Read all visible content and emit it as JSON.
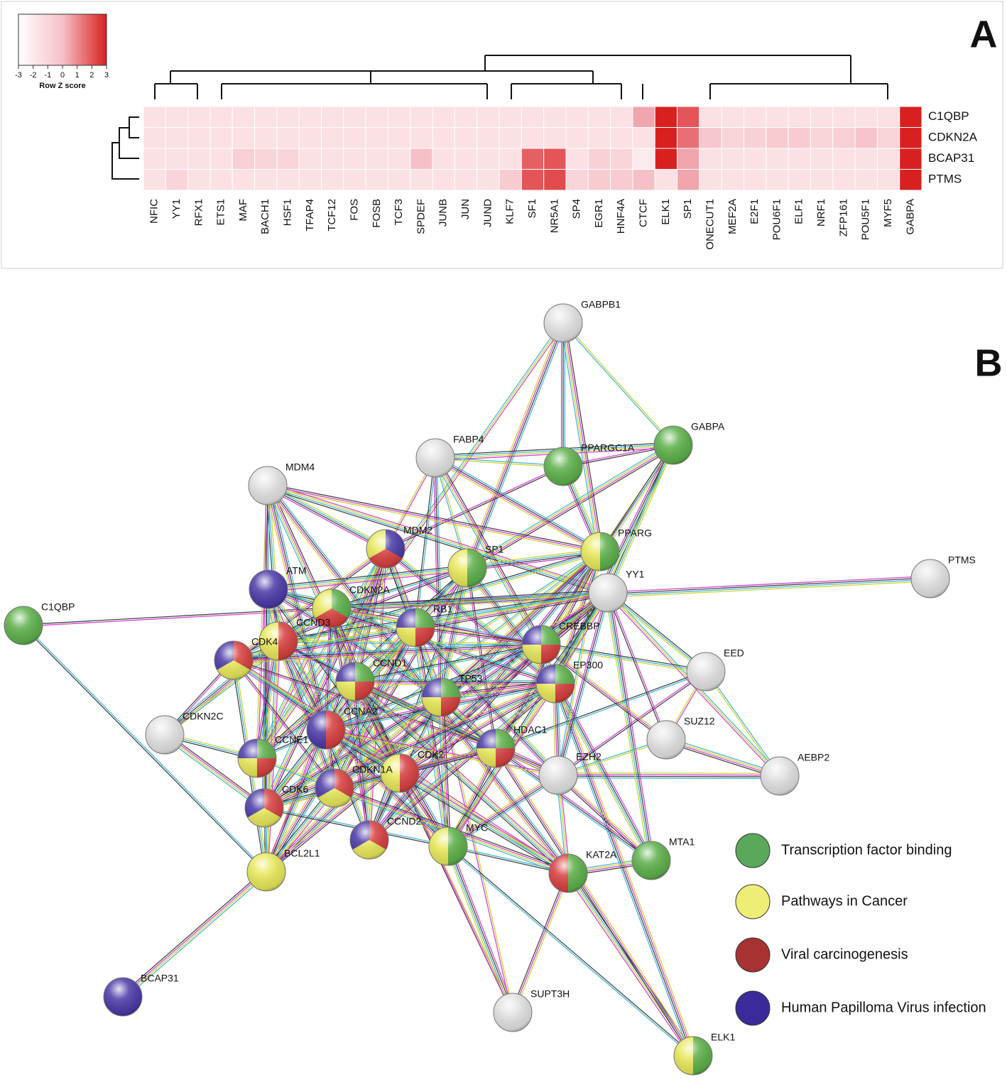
{
  "chart_data": {
    "type": "heatmap",
    "panel": "A",
    "categories": [
      "NFIC",
      "YY1",
      "RFX1",
      "ETS1",
      "MAF",
      "BACH1",
      "HSF1",
      "TFAP4",
      "TCF12",
      "FOS",
      "FOSB",
      "TCF3",
      "SPDEF",
      "JUNB",
      "JUN",
      "JUND",
      "KLF7",
      "SF1",
      "NR5A1",
      "SP4",
      "EGR1",
      "HNF4A",
      "CTCF",
      "ELK1",
      "SP1",
      "ONECUT1",
      "MEF2A",
      "E2F1",
      "POU6F1",
      "ELF1",
      "NRF1",
      "ZFP161",
      "POU5F1",
      "MYF5",
      "GABPA"
    ],
    "rows": [
      "C1QBP",
      "CDKN2A",
      "BCAP31",
      "PTMS"
    ],
    "values": [
      [
        -1.5,
        -1.5,
        -1.5,
        -1.5,
        -1.5,
        -1.5,
        -1.5,
        -1.5,
        -1.5,
        -1.5,
        -1.5,
        -1.5,
        -1.5,
        -1.5,
        -1.5,
        -1.5,
        -1.5,
        -1.5,
        -1.5,
        -1.5,
        -1.5,
        -1.5,
        0.5,
        3,
        2,
        -1.5,
        -1.5,
        -1.5,
        -1.5,
        -1.5,
        -1.5,
        -1.5,
        -1.5,
        -1.5,
        3
      ],
      [
        -1.5,
        -1.5,
        -1.5,
        -1.5,
        -1.5,
        -1.5,
        -1.5,
        -1.5,
        -1.5,
        -1.5,
        -1.5,
        -1.5,
        -1.5,
        -1.5,
        -1.5,
        -1.5,
        -1.5,
        -1.5,
        -1.5,
        -1.5,
        -1.5,
        -1.5,
        -1.5,
        3,
        1.5,
        -0.3,
        -1,
        -0.8,
        -0.5,
        -0.5,
        -1,
        -0.7,
        -0.2,
        -1,
        3
      ],
      [
        -1.5,
        -1.5,
        -1.5,
        -1.5,
        -0.7,
        -1,
        -1,
        -1.5,
        -1.5,
        -1.5,
        -1.5,
        -1.5,
        0,
        -1.5,
        -1.5,
        -1.5,
        -1.5,
        1.8,
        2,
        -1.5,
        -0.8,
        -1,
        -2,
        3,
        0.5,
        -1.5,
        -1.5,
        -1.5,
        -1.5,
        -1.5,
        -1.5,
        -1.5,
        -1.5,
        -1.5,
        3
      ],
      [
        -1.5,
        -1,
        -1.5,
        -1.5,
        -1.5,
        -1.5,
        -1.5,
        -1.5,
        -1.5,
        -1.5,
        -1.5,
        -1.5,
        -1.5,
        -1.5,
        -1.5,
        -1.5,
        -0.5,
        2,
        2.2,
        -1,
        -0.5,
        -0.5,
        0,
        -1.5,
        0.5,
        -1.5,
        -1.5,
        -1.5,
        -1.5,
        -1.5,
        -1.5,
        -1.5,
        -1.5,
        -1.5,
        3
      ]
    ],
    "zlim": [
      -3,
      3
    ],
    "zticks": [
      -3,
      -2,
      -1,
      0,
      1,
      2,
      3
    ],
    "zlabel": "Row Z score",
    "colors": [
      "#ffffff",
      "#f6c0c8",
      "#d92020"
    ]
  },
  "network": {
    "panel": "B",
    "nodes": [
      {
        "label": "GABPB1",
        "colors": []
      },
      {
        "label": "GABPA",
        "colors": [
          "#5db04a"
        ]
      },
      {
        "label": "PPARGC1A",
        "colors": [
          "#5db04a"
        ]
      },
      {
        "label": "FABP4",
        "colors": []
      },
      {
        "label": "MDM4",
        "colors": []
      },
      {
        "label": "MDM2",
        "colors": [
          "#4b3aa8",
          "#d94040",
          "#e8e85a"
        ]
      },
      {
        "label": "SP1",
        "colors": [
          "#5db04a",
          "#e8e85a"
        ]
      },
      {
        "label": "PPARG",
        "colors": [
          "#5db04a",
          "#e8e85a"
        ]
      },
      {
        "label": "YY1",
        "colors": []
      },
      {
        "label": "PTMS",
        "colors": []
      },
      {
        "label": "ATM",
        "colors": [
          "#4b3aa8"
        ]
      },
      {
        "label": "C1QBP",
        "colors": [
          "#5db04a"
        ]
      },
      {
        "label": "CDKN2A",
        "colors": [
          "#5db04a",
          "#d94040",
          "#e8e85a"
        ]
      },
      {
        "label": "CCND3",
        "colors": [
          "#d94040",
          "#e8e85a"
        ]
      },
      {
        "label": "CDK4",
        "colors": [
          "#d94040",
          "#e8e85a",
          "#4b3aa8"
        ]
      },
      {
        "label": "RB1",
        "colors": [
          "#5db04a",
          "#d94040",
          "#e8e85a",
          "#4b3aa8"
        ]
      },
      {
        "label": "CREBBP",
        "colors": [
          "#5db04a",
          "#d94040",
          "#e8e85a",
          "#4b3aa8"
        ]
      },
      {
        "label": "EED",
        "colors": []
      },
      {
        "label": "CCND1",
        "colors": [
          "#5db04a",
          "#d94040",
          "#e8e85a",
          "#4b3aa8"
        ]
      },
      {
        "label": "TP53",
        "colors": [
          "#5db04a",
          "#d94040",
          "#e8e85a",
          "#4b3aa8"
        ]
      },
      {
        "label": "EP300",
        "colors": [
          "#5db04a",
          "#d94040",
          "#e8e85a",
          "#4b3aa8"
        ]
      },
      {
        "label": "CDKN2C",
        "colors": []
      },
      {
        "label": "CCNA2",
        "colors": [
          "#d94040",
          "#4b3aa8"
        ]
      },
      {
        "label": "SUZ12",
        "colors": []
      },
      {
        "label": "CCNE1",
        "colors": [
          "#5db04a",
          "#d94040",
          "#e8e85a",
          "#4b3aa8"
        ]
      },
      {
        "label": "HDAC1",
        "colors": [
          "#5db04a",
          "#d94040",
          "#e8e85a",
          "#4b3aa8"
        ]
      },
      {
        "label": "EZH2",
        "colors": []
      },
      {
        "label": "CDK2",
        "colors": [
          "#d94040",
          "#e8e85a"
        ]
      },
      {
        "label": "AEBP2",
        "colors": []
      },
      {
        "label": "CDKN1A",
        "colors": [
          "#d94040",
          "#e8e85a",
          "#4b3aa8"
        ]
      },
      {
        "label": "CDK6",
        "colors": [
          "#d94040",
          "#e8e85a",
          "#4b3aa8"
        ]
      },
      {
        "label": "CCND2",
        "colors": [
          "#d94040",
          "#e8e85a",
          "#4b3aa8"
        ]
      },
      {
        "label": "MYC",
        "colors": [
          "#5db04a",
          "#e8e85a"
        ]
      },
      {
        "label": "MTA1",
        "colors": [
          "#5db04a"
        ]
      },
      {
        "label": "KAT2A",
        "colors": [
          "#5db04a",
          "#d94040"
        ]
      },
      {
        "label": "BCL2L1",
        "colors": [
          "#e8e85a"
        ]
      },
      {
        "label": "BCAP31",
        "colors": [
          "#4b3aa8"
        ]
      },
      {
        "label": "SUPT3H",
        "colors": []
      },
      {
        "label": "ELK1",
        "colors": [
          "#5db04a",
          "#e8e85a"
        ]
      }
    ],
    "legend": [
      {
        "label": "Transcription factor binding",
        "color": "#5aa85a"
      },
      {
        "label": "Pathways in Cancer",
        "color": "#eeee77"
      },
      {
        "label": "Viral carcinogenesis",
        "color": "#a83232"
      },
      {
        "label": "Human Papilloma Virus infection",
        "color": "#3b2a9a"
      }
    ]
  }
}
